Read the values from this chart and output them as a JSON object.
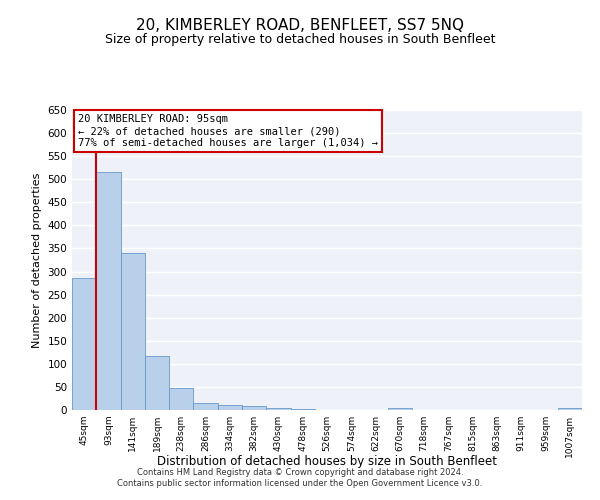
{
  "title": "20, KIMBERLEY ROAD, BENFLEET, SS7 5NQ",
  "subtitle": "Size of property relative to detached houses in South Benfleet",
  "xlabel": "Distribution of detached houses by size in South Benfleet",
  "ylabel": "Number of detached properties",
  "bar_color": "#b8d0ea",
  "bar_edge_color": "#6699cc",
  "categories": [
    "45sqm",
    "93sqm",
    "141sqm",
    "189sqm",
    "238sqm",
    "286sqm",
    "334sqm",
    "382sqm",
    "430sqm",
    "478sqm",
    "526sqm",
    "574sqm",
    "622sqm",
    "670sqm",
    "718sqm",
    "767sqm",
    "815sqm",
    "863sqm",
    "911sqm",
    "959sqm",
    "1007sqm"
  ],
  "values": [
    285,
    515,
    340,
    118,
    47,
    15,
    10,
    8,
    5,
    3,
    0,
    0,
    0,
    5,
    0,
    0,
    0,
    0,
    0,
    0,
    5
  ],
  "ylim": [
    0,
    650
  ],
  "yticks": [
    0,
    50,
    100,
    150,
    200,
    250,
    300,
    350,
    400,
    450,
    500,
    550,
    600,
    650
  ],
  "annotation_box_text": "20 KIMBERLEY ROAD: 95sqm\n← 22% of detached houses are smaller (290)\n77% of semi-detached houses are larger (1,034) →",
  "vline_color": "#cc0000",
  "background_color": "#eef2f8",
  "grid_color": "#ffffff",
  "footer_text": "Contains HM Land Registry data © Crown copyright and database right 2024.\nContains public sector information licensed under the Open Government Licence v3.0."
}
